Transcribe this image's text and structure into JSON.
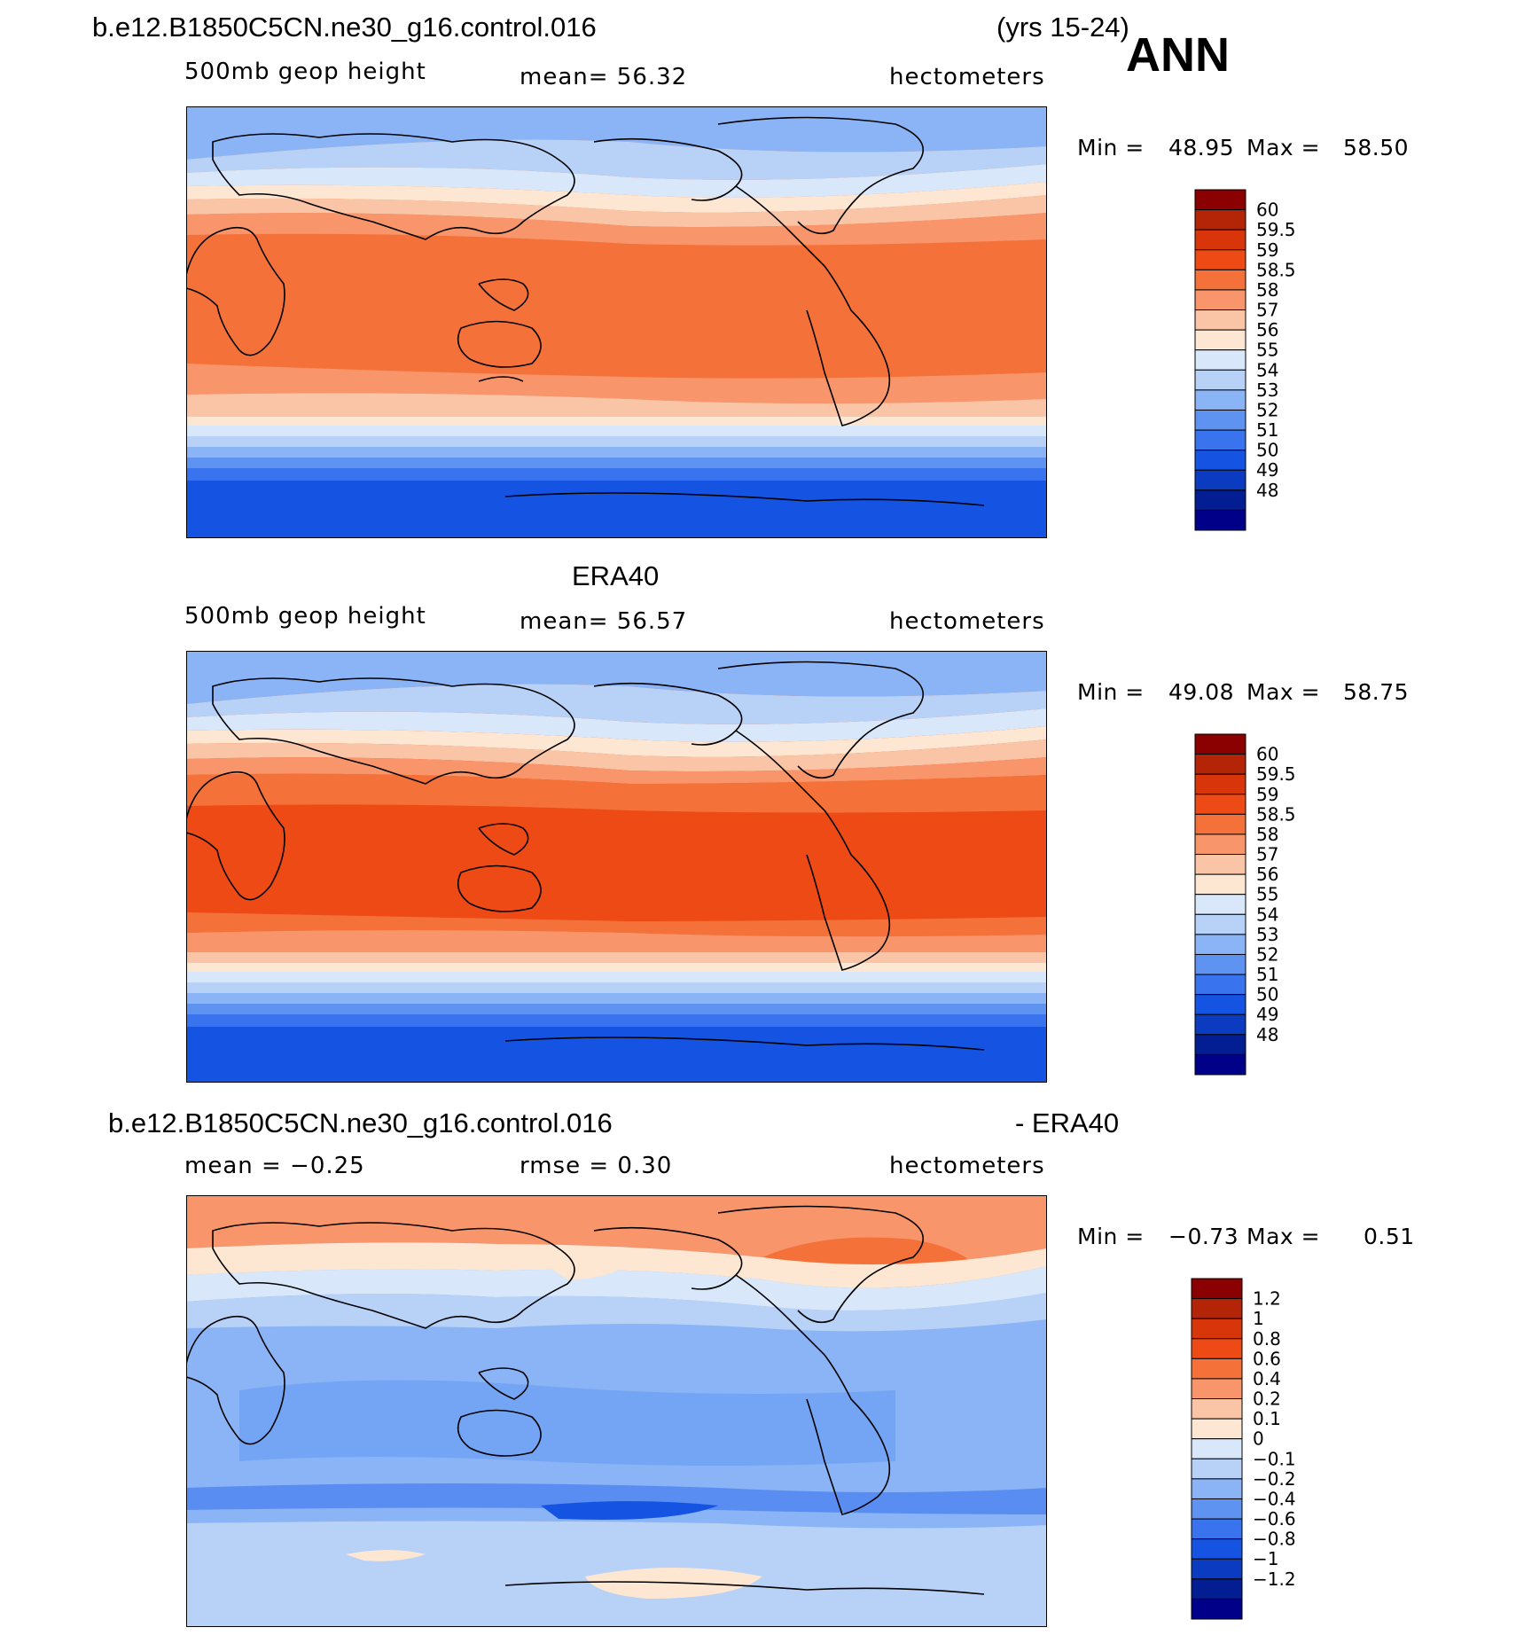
{
  "header": {
    "case_name": "b.e12.B1850C5CN.ne30_g16.control.016",
    "years": "(yrs 15-24)",
    "season": "ANN"
  },
  "panels": [
    {
      "id": "model",
      "variable": "500mb geop height",
      "stat": "mean=   56.32",
      "units": "hectometers",
      "min_label": "Min =",
      "min_value": "48.95",
      "max_label": "Max =",
      "max_value": "58.50",
      "levels": [
        "60",
        "59.5",
        "59",
        "58.5",
        "58",
        "57",
        "56",
        "55",
        "54",
        "53",
        "52",
        "51",
        "50",
        "49",
        "48"
      ],
      "colors": [
        "#8b0000",
        "#b42508",
        "#d8360a",
        "#ee4a16",
        "#f5713a",
        "#f8956a",
        "#fac5a6",
        "#fde6d2",
        "#d8e8fa",
        "#b7d1f7",
        "#8ab4f6",
        "#5e93f2",
        "#3a73ee",
        "#1554e2",
        "#0a3bc0",
        "#021e92",
        "#000088"
      ],
      "bands": {
        "base": "#f5713a",
        "model": "m"
      }
    },
    {
      "id": "obs",
      "title": "ERA40",
      "variable": "500mb geop height",
      "stat": "mean=   56.57",
      "units": "hectometers",
      "min_label": "Min =",
      "min_value": "49.08",
      "max_label": "Max =",
      "max_value": "58.75",
      "levels": [
        "60",
        "59.5",
        "59",
        "58.5",
        "58",
        "57",
        "56",
        "55",
        "54",
        "53",
        "52",
        "51",
        "50",
        "49",
        "48"
      ],
      "colors": [
        "#8b0000",
        "#b42508",
        "#d8360a",
        "#ee4a16",
        "#f5713a",
        "#f8956a",
        "#fac5a6",
        "#fde6d2",
        "#d8e8fa",
        "#b7d1f7",
        "#8ab4f6",
        "#5e93f2",
        "#3a73ee",
        "#1554e2",
        "#0a3bc0",
        "#021e92",
        "#000088"
      ]
    },
    {
      "id": "diff",
      "title": "b.e12.B1850C5CN.ne30_g16.control.016",
      "title_right": "- ERA40",
      "stat": "mean =   −0.25",
      "stat2": "rmse =     0.30",
      "units": "hectometers",
      "min_label": "Min =",
      "min_value": "−0.73",
      "max_label": "Max =",
      "max_value": "0.51",
      "levels": [
        "1.2",
        "1",
        "0.8",
        "0.6",
        "0.4",
        "0.2",
        "0.1",
        "0",
        "−0.1",
        "−0.2",
        "−0.4",
        "−0.6",
        "−0.8",
        "−1",
        "−1.2"
      ],
      "colors": [
        "#8b0000",
        "#b42508",
        "#d8360a",
        "#ee4a16",
        "#f5713a",
        "#f8956a",
        "#fac5a6",
        "#fde6d2",
        "#d8e8fa",
        "#b7d1f7",
        "#8ab4f6",
        "#5e93f2",
        "#3a73ee",
        "#1554e2",
        "#0a3bc0",
        "#021e92",
        "#000088"
      ]
    }
  ]
}
